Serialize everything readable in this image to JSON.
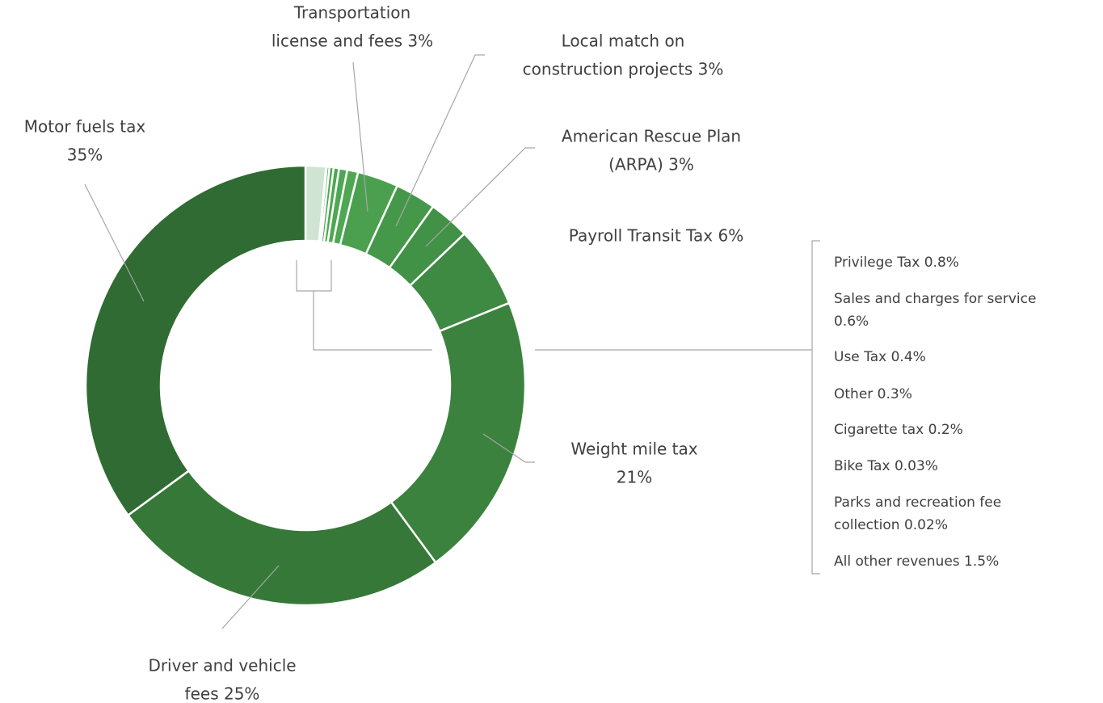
{
  "chart_data": {
    "type": "donut",
    "slices": [
      {
        "label": [
          "All other revenues 1.5%"
        ],
        "value": 1.5,
        "color": "#cfe4d3"
      },
      {
        "label": [
          "Parks and recreation fee",
          "collection 0.02%"
        ],
        "value": 0.02,
        "color": "#4ea853"
      },
      {
        "label": [
          "Bike Tax 0.03%"
        ],
        "value": 0.03,
        "color": "#4ea853"
      },
      {
        "label": [
          "Cigarette tax 0.2%"
        ],
        "value": 0.2,
        "color": "#4ea853"
      },
      {
        "label": [
          "Other 0.3%"
        ],
        "value": 0.3,
        "color": "#4ea853"
      },
      {
        "label": [
          "Use Tax 0.4%"
        ],
        "value": 0.4,
        "color": "#4ea853"
      },
      {
        "label": [
          "Sales and charges for service",
          "0.6%"
        ],
        "value": 0.6,
        "color": "#4ea853"
      },
      {
        "label": [
          "Privilege Tax 0.8%"
        ],
        "value": 0.8,
        "color": "#4ea853"
      },
      {
        "label": [
          "Transportation",
          "license and fees 3%"
        ],
        "value": 3,
        "color": "#4aa04e"
      },
      {
        "label": [
          "Local match on",
          "construction projects 3%"
        ],
        "value": 3,
        "color": "#45984a"
      },
      {
        "label": [
          "American Rescue Plan",
          "(ARPA) 3%"
        ],
        "value": 3,
        "color": "#419146"
      },
      {
        "label": [
          "Payroll Transit Tax 6%"
        ],
        "value": 6,
        "color": "#3e8a42"
      },
      {
        "label": [
          "Weight mile tax",
          "21%"
        ],
        "value": 21,
        "color": "#3a823d"
      },
      {
        "label": [
          "Driver and vehicle",
          "fees 25%"
        ],
        "value": 25,
        "color": "#367838"
      },
      {
        "label": [
          "Motor fuels tax",
          "35%"
        ],
        "value": 35,
        "color": "#2f6b32"
      }
    ]
  }
}
